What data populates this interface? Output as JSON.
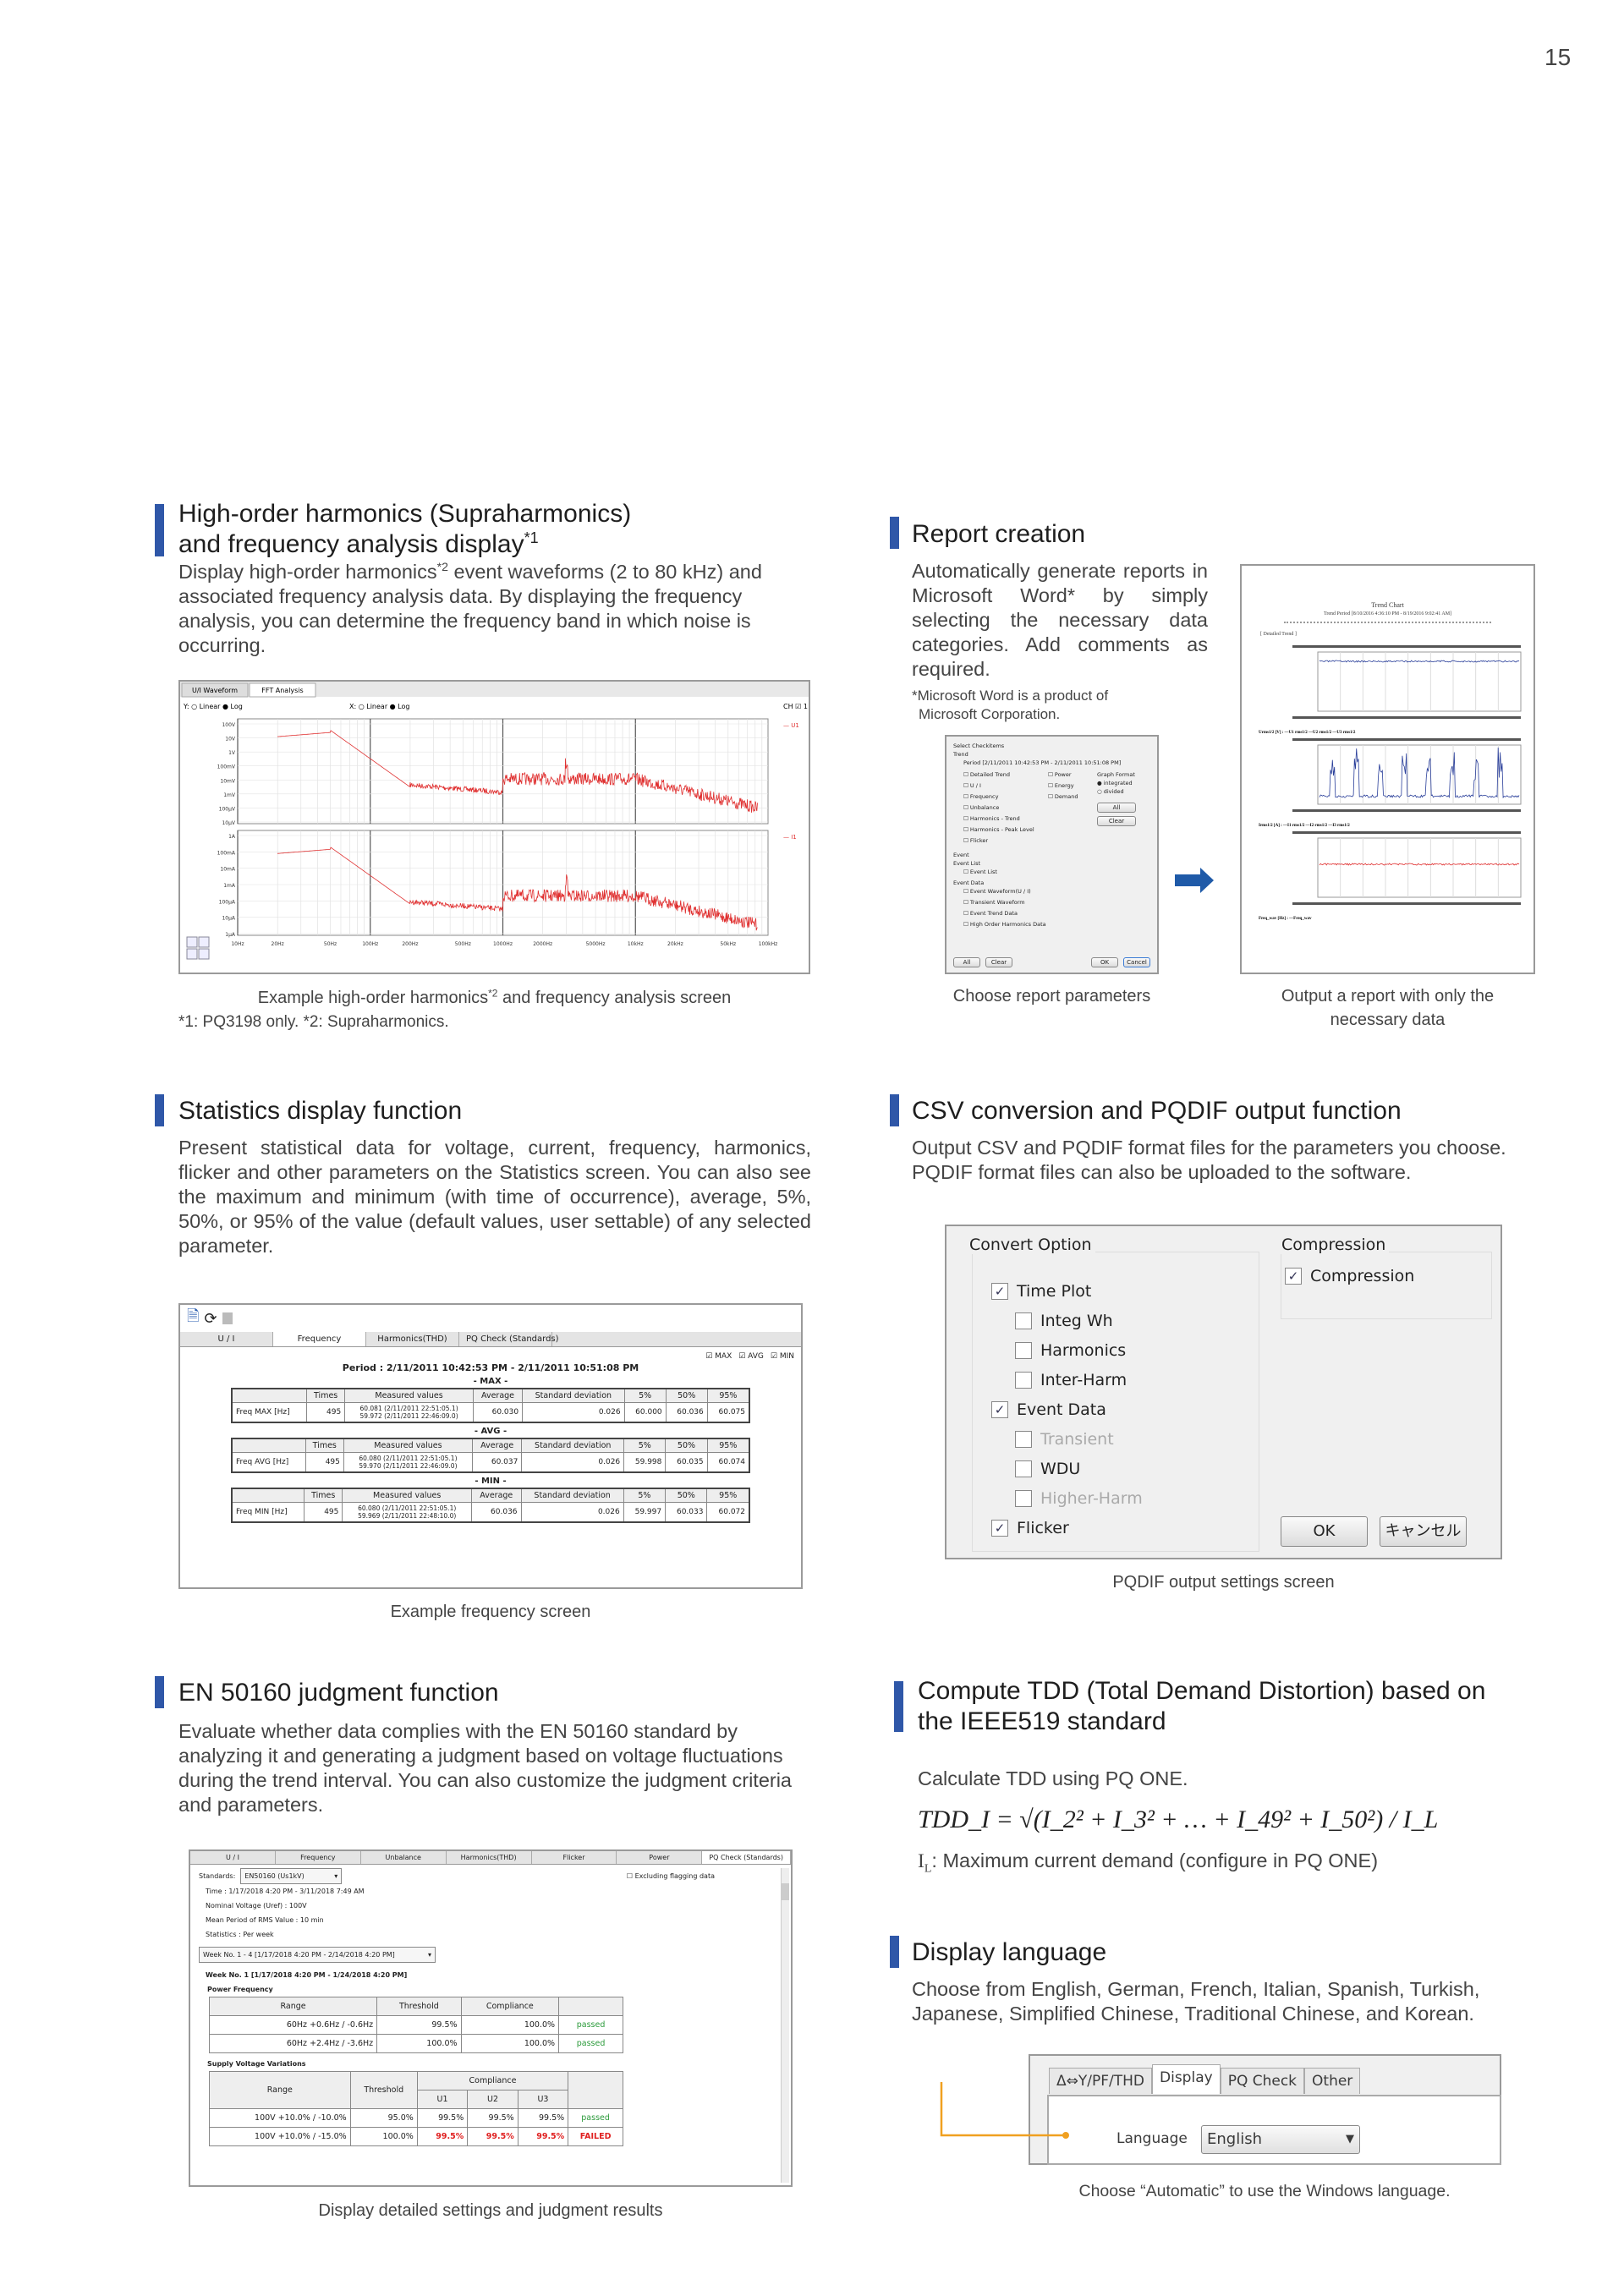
{
  "page_number": "15",
  "colors": {
    "accent_bar": "#2f57a8",
    "fft_line": "#e03030",
    "arrow": "#1f5aa8",
    "leader_line": "#f0a020",
    "passed": "#2a9a3a",
    "failed": "#e02020"
  },
  "supra": {
    "title_line1": "High-order harmonics (Supraharmonics)",
    "title_line2": "and frequency analysis display",
    "title_sup": "*1",
    "body_a": "Display high-order harmonics",
    "body_sup": "*2",
    "body_b": " event waveforms (2 to 80 kHz) and associated frequency analysis data. By displaying the frequency analysis, you can determine the frequency band in which noise is occurring.",
    "screen": {
      "tabs": [
        "U/I Waveform",
        "FFT Analysis"
      ],
      "y_scale": "Y: ○ Linear ● Log",
      "x_scale": "X: ○ Linear ● Log",
      "ch": "CH ☑ 1",
      "top_ticks": [
        "100V",
        "10V",
        "1V",
        "100mV",
        "10mV",
        "1mV",
        "100µV",
        "10µV"
      ],
      "bottom_ticks": [
        "1A",
        "100mA",
        "10mA",
        "1mA",
        "100µA",
        "10µA",
        "1µA"
      ],
      "x_ticks": [
        "10Hz",
        "20Hz",
        "50Hz",
        "100Hz",
        "200Hz",
        "500Hz",
        "1000Hz",
        "2000Hz",
        "5000Hz",
        "10kHz",
        "20kHz",
        "50kHz",
        "100kHz"
      ],
      "legend_top": "U1",
      "legend_bottom": "I1"
    },
    "caption_a": "Example high-order harmonics",
    "caption_sup": "*2",
    "caption_b": " and frequency analysis screen",
    "footnote": "*1: PQ3198 only. *2: Supraharmonics."
  },
  "report": {
    "title": "Report creation",
    "body": "Automatically generate reports in Microsoft Word* by simply selecting the necessary data categories.  Add comments as required.",
    "note_line1": "*Microsoft Word is a product of",
    "note_line2": "Microsoft Corporation.",
    "dialog": {
      "title": "Select Checkitems",
      "trend": "Trend",
      "period": "Period [2/11/2011 10:42:53 PM - 2/11/2011 10:51:08 PM]",
      "items_left": [
        "Detailed Trend",
        "U / I",
        "Frequency",
        "Unbalance",
        "Harmonics - Trend",
        "Harmonics - Peak Level",
        "Flicker"
      ],
      "items_mid": [
        "Power",
        "Energy",
        "Demand"
      ],
      "graph_format": "Graph Format",
      "integrated": "integrated",
      "divided": "divided",
      "all": "All",
      "clear": "Clear",
      "event": "Event",
      "event_list_group": "Event List",
      "event_list": "Event List",
      "event_data": "Event Data",
      "event_items": [
        "Event Waveform(U / I)",
        "Transient Waveform",
        "Event Trend Data",
        "High Order Harmonics Data"
      ],
      "ok": "OK",
      "cancel": "Cancel"
    },
    "doc": {
      "title": "Trend Chart",
      "period": "Trend Period [8/10/2016 4:36:10 PM - 8/19/2016 9:02:41 AM]",
      "section": "[ Detailed Trend ]",
      "legend1": "Urms1/2 [V] : —U1 rms1/2 —U2 rms1/2 —U3 rms1/2",
      "legend2": "Irms1/2 [A] : —I1 rms1/2 —I2 rms1/2 —I3 rms1/2",
      "legend3": "Freq_wav [Hz] : —Freq_wav"
    },
    "caption_left": "Choose report parameters",
    "caption_right": "Output a report with only the necessary data"
  },
  "stats": {
    "title": "Statistics display function",
    "body": "Present statistical data for voltage, current, frequency, harmonics, flicker and other parameters on the Statistics screen.  You can also see the maximum and minimum (with time of occurrence), average, 5%, 50%, or 95% of the value (default values, user settable) of any selected parameter.",
    "screen": {
      "tabs": [
        "U / I",
        "Frequency",
        "Harmonics(THD)",
        "PQ Check (Standards)"
      ],
      "active_tab": 1,
      "checks": [
        "MAX",
        "AVG",
        "MIN"
      ],
      "period": "Period : 2/11/2011 10:42:53 PM - 2/11/2011 10:51:08 PM",
      "columns": [
        "",
        "Times",
        "Measured values",
        "Average",
        "Standard deviation",
        "5%",
        "50%",
        "95%"
      ],
      "blocks": [
        {
          "label": "- MAX -",
          "row": [
            "Freq MAX [Hz]",
            "495",
            "60.081 (2/11/2011 22:51:05.1)\n59.972 (2/11/2011 22:46:09.0)",
            "60.030",
            "0.026",
            "60.000",
            "60.036",
            "60.075"
          ]
        },
        {
          "label": "- AVG -",
          "row": [
            "Freq AVG [Hz]",
            "495",
            "60.080 (2/11/2011 22:51:05.1)\n59.970 (2/11/2011 22:46:09.0)",
            "60.037",
            "0.026",
            "59.998",
            "60.035",
            "60.074"
          ]
        },
        {
          "label": "- MIN -",
          "row": [
            "Freq MIN [Hz]",
            "495",
            "60.080 (2/11/2011 22:51:05.1)\n59.969 (2/11/2011 22:48:10.0)",
            "60.036",
            "0.026",
            "59.997",
            "60.033",
            "60.072"
          ]
        }
      ]
    },
    "caption": "Example frequency screen"
  },
  "csv": {
    "title": "CSV conversion and PQDIF output function",
    "body": "Output CSV and PQDIF format files for the parameters you choose. PQDIF format files can also be uploaded to the software.",
    "dialog": {
      "convert_group": "Convert Option",
      "options": [
        {
          "label": "Time Plot",
          "checked": true,
          "indent": 0,
          "disabled": false
        },
        {
          "label": "Integ Wh",
          "checked": false,
          "indent": 1,
          "disabled": false
        },
        {
          "label": "Harmonics",
          "checked": false,
          "indent": 1,
          "disabled": false
        },
        {
          "label": "Inter-Harm",
          "checked": false,
          "indent": 1,
          "disabled": false
        },
        {
          "label": "Event Data",
          "checked": true,
          "indent": 0,
          "disabled": false
        },
        {
          "label": "Transient",
          "checked": false,
          "indent": 1,
          "disabled": true
        },
        {
          "label": "WDU",
          "checked": false,
          "indent": 1,
          "disabled": false
        },
        {
          "label": "Higher-Harm",
          "checked": false,
          "indent": 1,
          "disabled": true
        },
        {
          "label": "Flicker",
          "checked": true,
          "indent": 0,
          "disabled": false
        }
      ],
      "compression_group": "Compression",
      "compression": "Compression",
      "compression_checked": true,
      "ok": "OK",
      "cancel": "キャンセル"
    },
    "caption": "PQDIF output settings screen"
  },
  "en50160": {
    "title": "EN 50160 judgment function",
    "body": "Evaluate whether data complies with the EN 50160 standard by analyzing it and generating a judgment based on voltage fluctuations during the trend interval. You can also customize the judgment criteria and parameters.",
    "screen": {
      "tabs": [
        "U / I",
        "Frequency",
        "Unbalance",
        "Harmonics(THD)",
        "Flicker",
        "Power",
        "PQ Check (Standards)"
      ],
      "active_tab": 6,
      "standards_label": "Standards:",
      "standards_value": "EN50160 (Us1kV)",
      "excluding": "Excluding flagging data",
      "time": "Time :  1/17/2018 4:20 PM - 3/11/2018 7:49 AM",
      "nominal": "Nominal Voltage (Uref) :  100V",
      "mean_period": "Mean Period of RMS Value :  10 min",
      "statistics": "Statistics :  Per week",
      "week_select": "Week No. 1 - 4 [1/17/2018 4:20 PM - 2/14/2018 4:20 PM]",
      "week_heading": "Week No. 1 [1/17/2018 4:20 PM - 1/24/2018 4:20 PM]",
      "pf_heading": "Power Frequency",
      "pf_columns": [
        "Range",
        "Threshold",
        "Compliance",
        ""
      ],
      "pf_rows": [
        [
          "60Hz +0.6Hz / -0.6Hz",
          "99.5%",
          "100.0%",
          "passed"
        ],
        [
          "60Hz +2.4Hz / -3.6Hz",
          "100.0%",
          "100.0%",
          "passed"
        ]
      ],
      "sv_heading": "Supply Voltage Variations",
      "sv_columns": [
        "Range",
        "Threshold",
        "Compliance",
        ""
      ],
      "sv_sub": [
        "U1",
        "U2",
        "U3"
      ],
      "sv_rows": [
        [
          "100V +10.0% / -10.0%",
          "95.0%",
          "99.5%",
          "99.5%",
          "99.5%",
          "passed"
        ],
        [
          "100V +10.0% / -15.0%",
          "100.0%",
          "99.5%",
          "99.5%",
          "99.5%",
          "FAILED"
        ]
      ]
    },
    "caption": "Display detailed settings and judgment results"
  },
  "tdd": {
    "title_line1": "Compute TDD (Total Demand Distortion) based on",
    "title_line2": "the IEEE519 standard",
    "body": "Calculate TDD using PQ ONE.",
    "formula": "TDD_I = √(I_2² + I_3² + … + I_49² + I_50²) / I_L",
    "il_symbol": "I",
    "il_sub": "L",
    "il_text": ": Maximum current demand (configure in PQ ONE)"
  },
  "language": {
    "title": "Display language",
    "body": "Choose from English, German, French, Italian, Spanish, Turkish, Japanese, Simplified Chinese, Traditional Chinese, and Korean.",
    "tabs": [
      "Δ⇔Y/PF/THD",
      "Display",
      "PQ Check",
      "Other"
    ],
    "active_tab": 1,
    "label": "Language",
    "value": "English",
    "caption": "Choose “Automatic” to use the Windows language."
  }
}
